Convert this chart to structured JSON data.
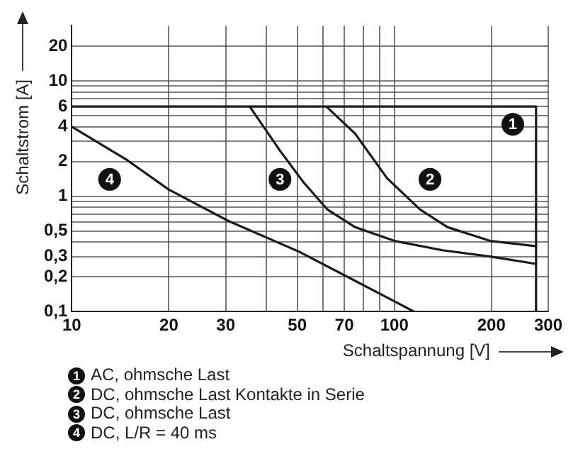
{
  "chart_data": {
    "type": "line",
    "xlabel": "Schaltspannung [V]",
    "ylabel": "Schaltstrom [A]",
    "log": "xy",
    "grid": true,
    "legend": "bottom",
    "marker": "none",
    "line_style": "solid",
    "xlim": [
      10,
      300
    ],
    "xticks": [
      10,
      20,
      30,
      {
        "value": 40,
        "label": null
      },
      50,
      {
        "value": 60,
        "label": null
      },
      70,
      {
        "value": 80,
        "label": null
      },
      {
        "value": 90,
        "label": null
      },
      100,
      200,
      300
    ],
    "ylim": [
      0.1,
      30
    ],
    "yticks": [
      {
        "value": 0.1,
        "label": "0,1"
      },
      {
        "value": 0.2,
        "label": "0,2"
      },
      {
        "value": 0.3,
        "label": "0,3"
      },
      {
        "value": 0.4,
        "label": null
      },
      {
        "value": 0.5,
        "label": "0,5"
      },
      {
        "value": 0.6,
        "label": null
      },
      {
        "value": 0.7,
        "label": null
      },
      {
        "value": 0.8,
        "label": null
      },
      {
        "value": 0.9,
        "label": null
      },
      1,
      2,
      {
        "value": 3,
        "label": null
      },
      4,
      {
        "value": 5,
        "label": null
      },
      6,
      {
        "value": 7,
        "label": null
      },
      {
        "value": 8,
        "label": null
      },
      {
        "value": 9,
        "label": null
      },
      10,
      20
    ],
    "series": [
      {
        "name": "AC, ohmsche Last",
        "color": "#1a1a1a",
        "x": [
          10,
          275,
          275
        ],
        "values": [
          6,
          6,
          0.1
        ]
      },
      {
        "name": "DC, ohmsche Last Kontakte in Serie",
        "color": "#1a1a1a",
        "x": [
          61.5,
          75.5,
          95,
          120,
          146,
          198,
          273
        ],
        "values": [
          6,
          3.5,
          1.43,
          0.77,
          0.54,
          0.41,
          0.37
        ]
      },
      {
        "name": "DC, ohmsche Last",
        "color": "#1a1a1a",
        "x": [
          35.6,
          44.4,
          52.4,
          61.9,
          75.5,
          100,
          141,
          198,
          273
        ],
        "values": [
          6,
          2.44,
          1.31,
          0.77,
          0.54,
          0.41,
          0.34,
          0.3,
          0.26
        ]
      },
      {
        "name": "DC, L/R = 40 ms",
        "color": "#1a1a1a",
        "x": [
          10,
          14.9,
          20,
          30.6,
          50.7,
          86,
          115
        ],
        "values": [
          4,
          2.04,
          1.14,
          0.61,
          0.33,
          0.153,
          0.1
        ]
      }
    ],
    "annotations": [
      {
        "text": "1",
        "x": 233,
        "y": 4.2
      },
      {
        "text": "2",
        "x": 129,
        "y": 1.4
      },
      {
        "text": "3",
        "x": 44.2,
        "y": 1.4
      },
      {
        "text": "4",
        "x": 13.1,
        "y": 1.4
      }
    ]
  }
}
